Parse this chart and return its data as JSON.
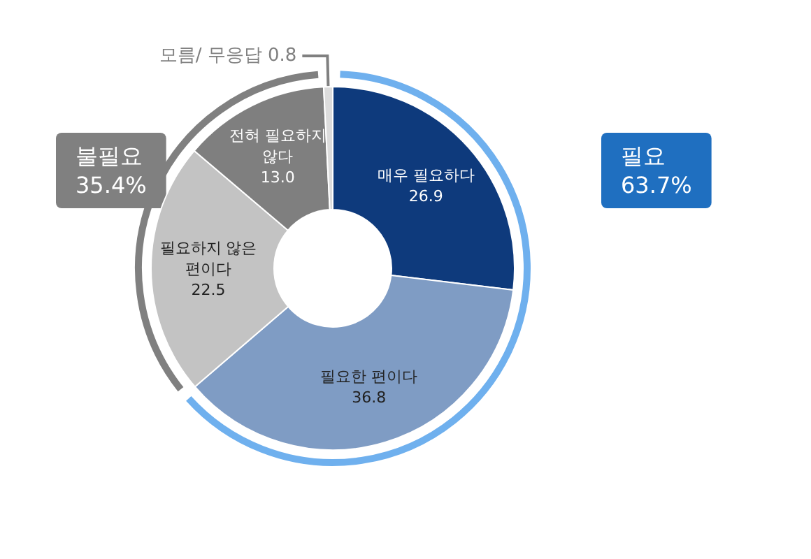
{
  "chart_data": {
    "type": "donut",
    "categories": [
      "매우 필요하다",
      "필요한 편이다",
      "필요하지 않은 편이다",
      "전혀 필요하지 않다",
      "모름/ 무응답"
    ],
    "values": [
      26.9,
      36.8,
      22.5,
      13.0,
      0.8
    ],
    "value_labels": [
      "26.9",
      "36.8",
      "22.5",
      "13.0",
      "0.8"
    ],
    "colors": [
      "#0e3a7c",
      "#7f9cc4",
      "#c3c3c3",
      "#7f7f7f",
      "#dcdcdc"
    ],
    "annotations": [
      "필요\n63.7%",
      "불필요\n35.4%"
    ],
    "legend": false
  }
}
